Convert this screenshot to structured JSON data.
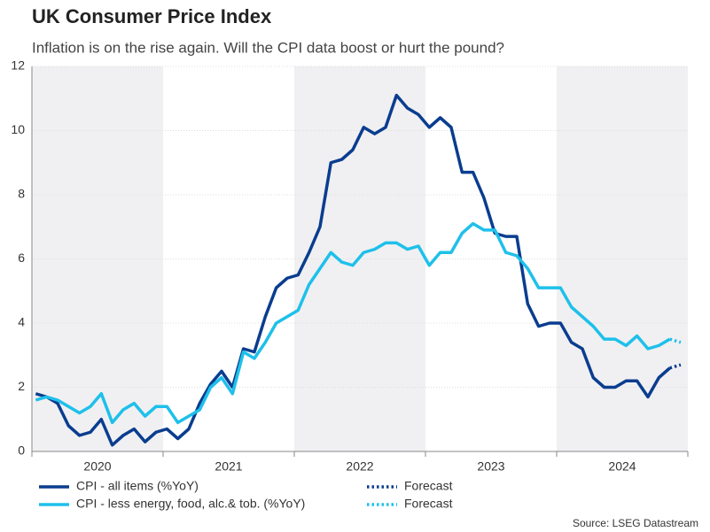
{
  "chart_data": {
    "type": "line",
    "title": "UK Consumer Price Index",
    "subtitle": "Inflation is on the rise again. Will the CPI data boost or hurt the pound?",
    "source": "Source: LSEG Datastream",
    "categories": [
      null,
      null,
      null,
      null,
      null,
      null,
      "2020",
      null,
      null,
      null,
      null,
      null,
      null,
      null,
      null,
      null,
      null,
      null,
      "2021",
      null,
      null,
      null,
      null,
      null,
      null,
      null,
      null,
      null,
      null,
      null,
      "2022",
      null,
      null,
      null,
      null,
      null,
      null,
      null,
      null,
      null,
      null,
      null,
      "2023",
      null,
      null,
      null,
      null,
      null,
      null,
      null,
      null,
      null,
      null,
      null,
      "2024",
      null,
      null,
      null,
      null,
      null
    ],
    "ylim": [
      0,
      12
    ],
    "yticks": [
      0,
      2,
      4,
      6,
      8,
      10,
      12
    ],
    "grid": true,
    "series": [
      {
        "name": "CPI - all items (%YoY)",
        "color": "#0a3d8f",
        "dash": false,
        "values": [
          1.8,
          1.7,
          1.5,
          0.8,
          0.5,
          0.6,
          1.0,
          0.2,
          0.5,
          0.7,
          0.3,
          0.6,
          0.7,
          0.4,
          0.7,
          1.5,
          2.1,
          2.5,
          2.0,
          3.2,
          3.1,
          4.2,
          5.1,
          5.4,
          5.5,
          6.2,
          7.0,
          9.0,
          9.1,
          9.4,
          10.1,
          9.9,
          10.1,
          11.1,
          10.7,
          10.5,
          10.1,
          10.4,
          10.1,
          8.7,
          8.7,
          7.9,
          6.8,
          6.7,
          6.7,
          4.6,
          3.9,
          4.0,
          4.0,
          3.4,
          3.2,
          2.3,
          2.0,
          2.0,
          2.2,
          2.2,
          1.7,
          2.3,
          2.6,
          null
        ]
      },
      {
        "name": "CPI - less energy, food, alc.& tob. (%YoY)",
        "color": "#1ec0ea",
        "dash": false,
        "values": [
          1.6,
          1.7,
          1.6,
          1.4,
          1.2,
          1.4,
          1.8,
          0.9,
          1.3,
          1.5,
          1.1,
          1.4,
          1.4,
          0.9,
          1.1,
          1.3,
          2.0,
          2.3,
          1.8,
          3.1,
          2.9,
          3.4,
          4.0,
          4.2,
          4.4,
          5.2,
          5.7,
          6.2,
          5.9,
          5.8,
          6.2,
          6.3,
          6.5,
          6.5,
          6.3,
          6.4,
          5.8,
          6.2,
          6.2,
          6.8,
          7.1,
          6.9,
          6.9,
          6.2,
          6.1,
          5.7,
          5.1,
          5.1,
          5.1,
          4.5,
          4.2,
          3.9,
          3.5,
          3.5,
          3.3,
          3.6,
          3.2,
          3.3,
          3.5,
          null
        ]
      },
      {
        "name": "Forecast",
        "color": "#0a3d8f",
        "dash": true,
        "values": [
          null,
          null,
          null,
          null,
          null,
          null,
          null,
          null,
          null,
          null,
          null,
          null,
          null,
          null,
          null,
          null,
          null,
          null,
          null,
          null,
          null,
          null,
          null,
          null,
          null,
          null,
          null,
          null,
          null,
          null,
          null,
          null,
          null,
          null,
          null,
          null,
          null,
          null,
          null,
          null,
          null,
          null,
          null,
          null,
          null,
          null,
          null,
          null,
          null,
          null,
          null,
          null,
          null,
          null,
          null,
          null,
          null,
          null,
          2.6,
          2.7
        ]
      },
      {
        "name": "Forecast",
        "color": "#1ec0ea",
        "dash": true,
        "values": [
          null,
          null,
          null,
          null,
          null,
          null,
          null,
          null,
          null,
          null,
          null,
          null,
          null,
          null,
          null,
          null,
          null,
          null,
          null,
          null,
          null,
          null,
          null,
          null,
          null,
          null,
          null,
          null,
          null,
          null,
          null,
          null,
          null,
          null,
          null,
          null,
          null,
          null,
          null,
          null,
          null,
          null,
          null,
          null,
          null,
          null,
          null,
          null,
          null,
          null,
          null,
          null,
          null,
          null,
          null,
          null,
          null,
          null,
          3.5,
          3.4
        ]
      }
    ]
  }
}
